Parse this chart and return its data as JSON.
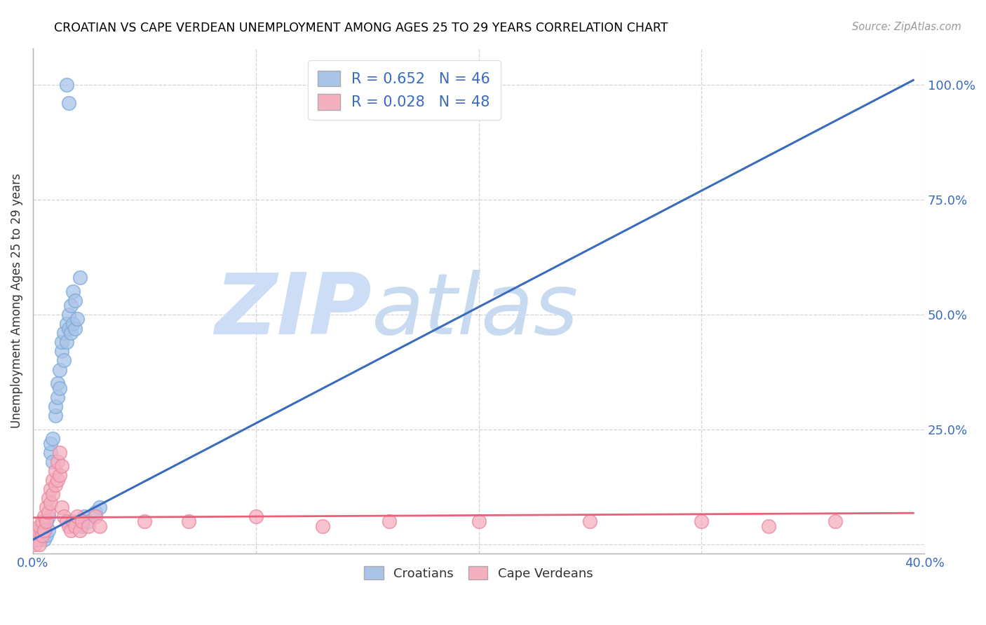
{
  "title": "CROATIAN VS CAPE VERDEAN UNEMPLOYMENT AMONG AGES 25 TO 29 YEARS CORRELATION CHART",
  "source": "Source: ZipAtlas.com",
  "ylabel": "Unemployment Among Ages 25 to 29 years",
  "xlim": [
    0.0,
    0.4
  ],
  "ylim": [
    -0.02,
    1.08
  ],
  "xticks": [
    0.0,
    0.1,
    0.2,
    0.3,
    0.4
  ],
  "xticklabels": [
    "0.0%",
    "",
    "",
    "",
    "40.0%"
  ],
  "yticks": [
    0.0,
    0.25,
    0.5,
    0.75,
    1.0
  ],
  "yticklabels": [
    "",
    "25.0%",
    "50.0%",
    "75.0%",
    "100.0%"
  ],
  "croatian_color": "#aac4e8",
  "cape_verdean_color": "#f5afc0",
  "blue_line_color": "#3a6bbf",
  "pink_line_color": "#e8607a",
  "watermark_zip_color": "#ccddf5",
  "watermark_atlas_color": "#c8daf0",
  "legend_text_color": "#3a6bbf",
  "croatian_R": 0.652,
  "croatian_N": 46,
  "cape_verdean_R": 0.028,
  "cape_verdean_N": 48,
  "cr_line_x0": 0.0,
  "cr_line_y0": 0.01,
  "cr_line_x1": 0.395,
  "cr_line_y1": 1.01,
  "cv_line_x0": 0.0,
  "cv_line_y0": 0.058,
  "cv_line_x1": 0.395,
  "cv_line_y1": 0.068,
  "croatian_points": [
    [
      0.001,
      0.01
    ],
    [
      0.002,
      0.02
    ],
    [
      0.002,
      0.015
    ],
    [
      0.003,
      0.01
    ],
    [
      0.003,
      0.03
    ],
    [
      0.004,
      0.02
    ],
    [
      0.004,
      0.04
    ],
    [
      0.005,
      0.01
    ],
    [
      0.005,
      0.03
    ],
    [
      0.006,
      0.05
    ],
    [
      0.006,
      0.02
    ],
    [
      0.007,
      0.03
    ],
    [
      0.007,
      0.06
    ],
    [
      0.008,
      0.2
    ],
    [
      0.008,
      0.22
    ],
    [
      0.009,
      0.18
    ],
    [
      0.009,
      0.23
    ],
    [
      0.01,
      0.28
    ],
    [
      0.01,
      0.3
    ],
    [
      0.011,
      0.32
    ],
    [
      0.011,
      0.35
    ],
    [
      0.012,
      0.38
    ],
    [
      0.012,
      0.34
    ],
    [
      0.013,
      0.42
    ],
    [
      0.013,
      0.44
    ],
    [
      0.014,
      0.46
    ],
    [
      0.014,
      0.4
    ],
    [
      0.015,
      0.48
    ],
    [
      0.015,
      0.44
    ],
    [
      0.016,
      0.5
    ],
    [
      0.016,
      0.47
    ],
    [
      0.017,
      0.52
    ],
    [
      0.017,
      0.46
    ],
    [
      0.018,
      0.55
    ],
    [
      0.018,
      0.48
    ],
    [
      0.019,
      0.47
    ],
    [
      0.019,
      0.53
    ],
    [
      0.02,
      0.49
    ],
    [
      0.021,
      0.58
    ],
    [
      0.022,
      0.04
    ],
    [
      0.023,
      0.06
    ],
    [
      0.025,
      0.05
    ],
    [
      0.028,
      0.07
    ],
    [
      0.03,
      0.08
    ],
    [
      0.016,
      0.96
    ],
    [
      0.015,
      1.0
    ]
  ],
  "cape_verdean_points": [
    [
      0.001,
      0.0
    ],
    [
      0.001,
      0.02
    ],
    [
      0.002,
      0.01
    ],
    [
      0.002,
      0.03
    ],
    [
      0.003,
      0.04
    ],
    [
      0.003,
      0.0
    ],
    [
      0.004,
      0.02
    ],
    [
      0.004,
      0.05
    ],
    [
      0.005,
      0.06
    ],
    [
      0.005,
      0.03
    ],
    [
      0.006,
      0.08
    ],
    [
      0.006,
      0.05
    ],
    [
      0.007,
      0.1
    ],
    [
      0.007,
      0.07
    ],
    [
      0.008,
      0.12
    ],
    [
      0.008,
      0.09
    ],
    [
      0.009,
      0.14
    ],
    [
      0.009,
      0.11
    ],
    [
      0.01,
      0.16
    ],
    [
      0.01,
      0.13
    ],
    [
      0.011,
      0.18
    ],
    [
      0.011,
      0.14
    ],
    [
      0.012,
      0.2
    ],
    [
      0.012,
      0.15
    ],
    [
      0.013,
      0.17
    ],
    [
      0.013,
      0.08
    ],
    [
      0.014,
      0.06
    ],
    [
      0.015,
      0.05
    ],
    [
      0.016,
      0.04
    ],
    [
      0.017,
      0.03
    ],
    [
      0.018,
      0.05
    ],
    [
      0.019,
      0.04
    ],
    [
      0.02,
      0.06
    ],
    [
      0.021,
      0.03
    ],
    [
      0.022,
      0.05
    ],
    [
      0.025,
      0.04
    ],
    [
      0.028,
      0.06
    ],
    [
      0.03,
      0.04
    ],
    [
      0.05,
      0.05
    ],
    [
      0.07,
      0.05
    ],
    [
      0.1,
      0.06
    ],
    [
      0.13,
      0.04
    ],
    [
      0.16,
      0.05
    ],
    [
      0.2,
      0.05
    ],
    [
      0.25,
      0.05
    ],
    [
      0.3,
      0.05
    ],
    [
      0.33,
      0.04
    ],
    [
      0.36,
      0.05
    ]
  ]
}
